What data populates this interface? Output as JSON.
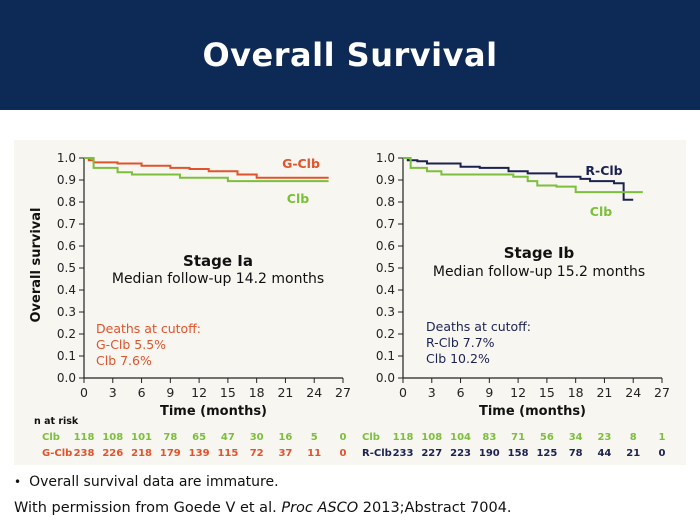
{
  "header": {
    "title": "Overall Survival"
  },
  "footnote": {
    "bullet": "Overall survival data are immature.",
    "credit_pre": "With permission from Goede V et al.",
    "credit_journal": "Proc ASCO",
    "credit_post": "2013;Abstract 7004."
  },
  "colors": {
    "banner": "#0c2a55",
    "gclb": "#e0532c",
    "rclb": "#1c2250",
    "clb": "#7cbf3c"
  },
  "risk_label": "n at risk",
  "chart_data": [
    {
      "type": "line",
      "title": "Stage Ia",
      "subtitle": "Median follow-up 14.2 months",
      "xlabel": "Time (months)",
      "ylabel": "Overall survival",
      "xlim": [
        0,
        27
      ],
      "ylim": [
        0,
        1.0
      ],
      "xticks": [
        0,
        3,
        6,
        9,
        12,
        15,
        18,
        21,
        24,
        27
      ],
      "yticks": [
        "0.0",
        "0.1",
        "0.2",
        "0.3",
        "0.4",
        "0.5",
        "0.6",
        "0.7",
        "0.8",
        "0.9",
        "1.0"
      ],
      "annotation": {
        "heading": "Deaths at cutoff:",
        "lines": [
          "G-Clb 5.5%",
          "Clb 7.6%"
        ],
        "color": "#e0532c"
      },
      "series": [
        {
          "name": "G-Clb",
          "color": "#e0532c",
          "x": [
            0,
            0.5,
            1,
            3.5,
            6,
            9,
            11,
            13,
            16,
            18,
            25.5
          ],
          "y": [
            1.0,
            0.99,
            0.98,
            0.975,
            0.965,
            0.955,
            0.95,
            0.94,
            0.925,
            0.91,
            0.91
          ]
        },
        {
          "name": "Clb",
          "color": "#7cbf3c",
          "x": [
            0,
            1,
            3.5,
            5,
            10,
            15,
            25.5
          ],
          "y": [
            1.0,
            0.955,
            0.935,
            0.925,
            0.91,
            0.895,
            0.895
          ]
        }
      ],
      "at_risk": [
        {
          "name": "Clb",
          "color": "#7cbf3c",
          "values": [
            "118",
            "108",
            "101",
            "78",
            "65",
            "47",
            "30",
            "16",
            "5",
            "0"
          ]
        },
        {
          "name": "G-Clb",
          "color": "#e0532c",
          "values": [
            "238",
            "226",
            "218",
            "179",
            "139",
            "115",
            "72",
            "37",
            "11",
            "0"
          ]
        }
      ]
    },
    {
      "type": "line",
      "title": "Stage Ib",
      "subtitle": "Median follow-up 15.2 months",
      "xlabel": "Time (months)",
      "ylabel": "",
      "xlim": [
        0,
        27
      ],
      "ylim": [
        0,
        1.0
      ],
      "xticks": [
        0,
        3,
        6,
        9,
        12,
        15,
        18,
        21,
        24,
        27
      ],
      "yticks": [
        "0.0",
        "0.1",
        "0.2",
        "0.3",
        "0.4",
        "0.5",
        "0.6",
        "0.7",
        "0.8",
        "0.9",
        "1.0"
      ],
      "annotation": {
        "heading": "Deaths at cutoff:",
        "lines": [
          "R-Clb 7.7%",
          "Clb 10.2%"
        ],
        "color": "#1c2250"
      },
      "series": [
        {
          "name": "R-Clb",
          "color": "#1c2250",
          "x": [
            0,
            0.5,
            1.5,
            2.5,
            6,
            8,
            11,
            13,
            16,
            18.5,
            19.5,
            22,
            23,
            24
          ],
          "y": [
            1.0,
            0.99,
            0.985,
            0.975,
            0.96,
            0.955,
            0.94,
            0.93,
            0.915,
            0.905,
            0.895,
            0.885,
            0.81,
            0.81
          ]
        },
        {
          "name": "Clb",
          "color": "#7cbf3c",
          "x": [
            0,
            0.8,
            2.5,
            4,
            9,
            11.5,
            13,
            14,
            16,
            18,
            24,
            25
          ],
          "y": [
            1.0,
            0.955,
            0.94,
            0.925,
            0.925,
            0.915,
            0.895,
            0.875,
            0.87,
            0.845,
            0.845,
            0.845
          ]
        }
      ],
      "at_risk": [
        {
          "name": "Clb",
          "color": "#7cbf3c",
          "values": [
            "118",
            "108",
            "104",
            "83",
            "71",
            "56",
            "34",
            "23",
            "8",
            "1"
          ]
        },
        {
          "name": "R-Clb",
          "color": "#1c2250",
          "values": [
            "233",
            "227",
            "223",
            "190",
            "158",
            "125",
            "78",
            "44",
            "21",
            "0"
          ]
        }
      ]
    }
  ]
}
